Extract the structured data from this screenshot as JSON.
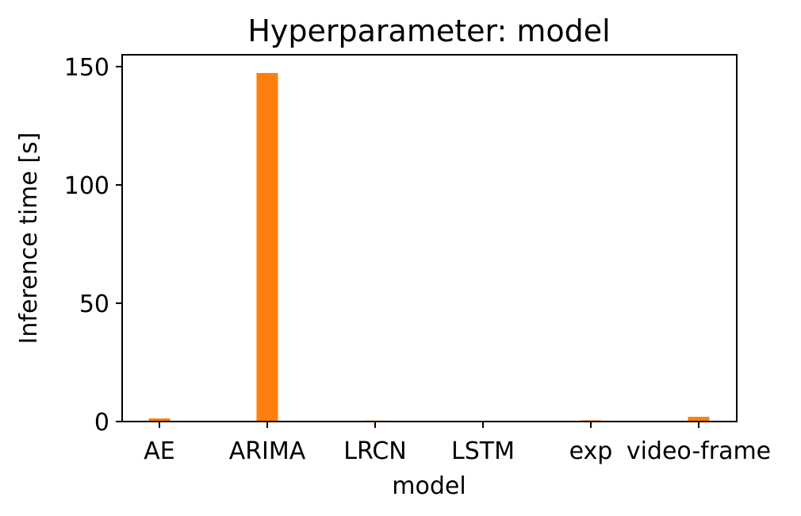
{
  "chart_data": {
    "type": "bar",
    "title": "Hyperparameter: model",
    "xlabel": "model",
    "ylabel": "Inference time [s]",
    "categories": [
      "AE",
      "ARIMA",
      "LRCN",
      "LSTM",
      "exp",
      "video-frame"
    ],
    "values": [
      1.3,
      147.3,
      0.4,
      0.1,
      0.5,
      2.0
    ],
    "ylim": [
      0,
      155
    ],
    "yticks": [
      0,
      50,
      100,
      150
    ],
    "grid": false,
    "bar_color": "#ff7f0e"
  }
}
